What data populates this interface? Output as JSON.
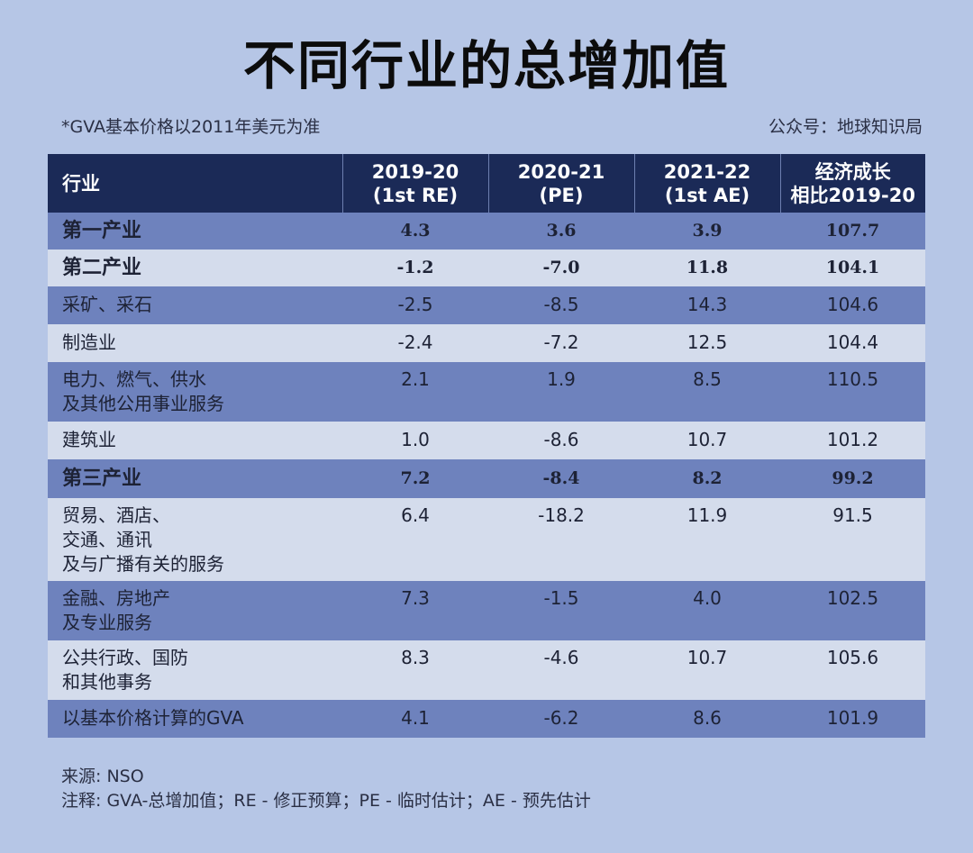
{
  "title": "不同行业的总增加值",
  "note": "*GVA基本价格以2011年美元为准",
  "credit": "公众号：地球知识局",
  "footer": {
    "source": "来源: NSO",
    "notes": "注释: GVA-总增加值；RE - 修正预算；PE - 临时估计；AE - 预先估计"
  },
  "chart_data": {
    "type": "table",
    "title": "不同行业的总增加值",
    "columns": [
      "行业",
      "2019-20\n(1st RE)",
      "2020-21\n(PE)",
      "2021-22\n(1st  AE)",
      "经济成长\n相比2019-20"
    ],
    "rows": [
      {
        "name": "第一产业",
        "values": [
          "4.3",
          "3.6",
          "3.9",
          "107.7"
        ],
        "kind": "sector"
      },
      {
        "name": "第二产业",
        "values": [
          "-1.2",
          "-7.0",
          "11.8",
          "104.1"
        ],
        "kind": "sector"
      },
      {
        "name": "采矿、采石",
        "values": [
          "-2.5",
          "-8.5",
          "14.3",
          "104.6"
        ],
        "kind": "sub"
      },
      {
        "name": "制造业",
        "values": [
          "-2.4",
          "-7.2",
          "12.5",
          "104.4"
        ],
        "kind": "sub"
      },
      {
        "name": "电力、燃气、供水\n及其他公用事业服务",
        "values": [
          "2.1",
          "1.9",
          "8.5",
          "110.5"
        ],
        "kind": "sub"
      },
      {
        "name": "建筑业",
        "values": [
          "1.0",
          "-8.6",
          "10.7",
          "101.2"
        ],
        "kind": "sub"
      },
      {
        "name": "第三产业",
        "values": [
          "7.2",
          "-8.4",
          "8.2",
          "99.2"
        ],
        "kind": "sector"
      },
      {
        "name": "贸易、酒店、\n交通、通讯\n及与广播有关的服务",
        "values": [
          "6.4",
          "-18.2",
          "11.9",
          "91.5"
        ],
        "kind": "sub"
      },
      {
        "name": "金融、房地产\n及专业服务",
        "values": [
          "7.3",
          "-1.5",
          "4.0",
          "102.5"
        ],
        "kind": "sub"
      },
      {
        "name": "公共行政、国防\n和其他事务",
        "values": [
          "8.3",
          "-4.6",
          "10.7",
          "105.6"
        ],
        "kind": "sub"
      },
      {
        "name": "以基本价格计算的GVA",
        "values": [
          "4.1",
          "-6.2",
          "8.6",
          "101.9"
        ],
        "kind": "sub"
      }
    ]
  }
}
